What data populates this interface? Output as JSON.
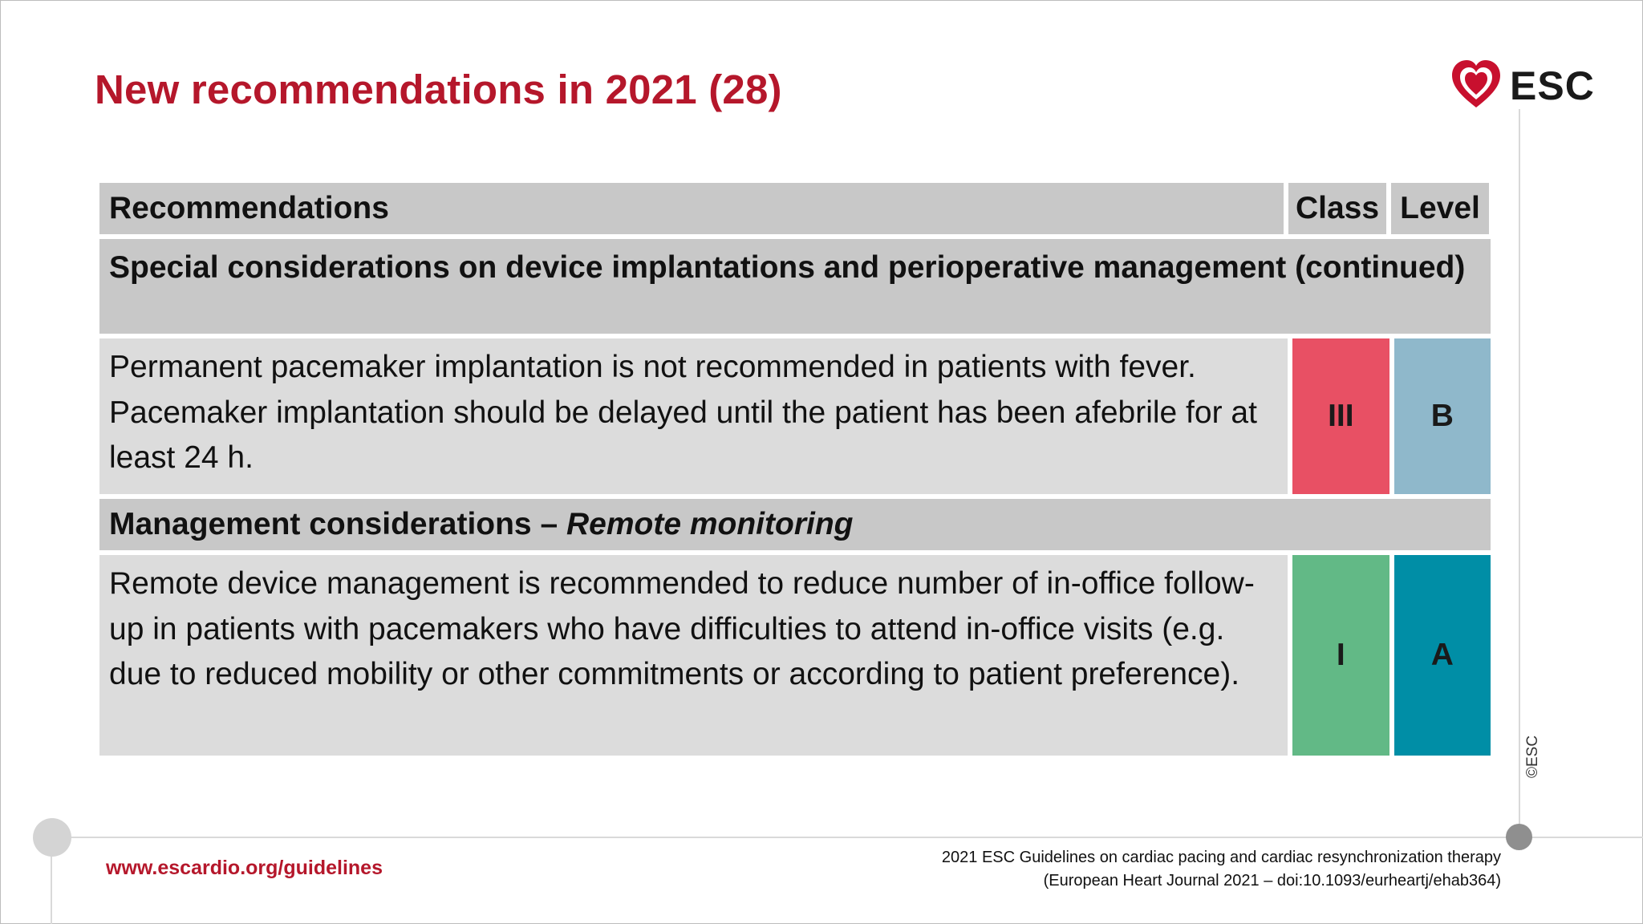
{
  "slide": {
    "title": "New recommendations in 2021 (28)",
    "logo_text": "ESC",
    "copyright": "©ESC",
    "footer_url": "www.escardio.org/guidelines",
    "citation_line1": "2021 ESC Guidelines on cardiac pacing and cardiac resynchronization therapy",
    "citation_line2": "(European Heart Journal 2021 – doi:10.1093/eurheartj/ehab364)"
  },
  "table": {
    "headers": {
      "recommendations": "Recommendations",
      "class": "Class",
      "level": "Level"
    },
    "section1": "Special considerations on device implantations and perioperative management (continued)",
    "row1": {
      "text": "Permanent pacemaker implantation is not recommended in patients with fever. Pacemaker implantation should be delayed until the patient has been afebrile for at least 24 h.",
      "class": "III",
      "level": "B"
    },
    "section2_bold": "Management considerations – ",
    "section2_italic": "Remote monitoring",
    "row2": {
      "text": "Remote device management is recommended to reduce number of in-office follow-up in patients with pacemakers who have difficulties to attend in-office visits (e.g. due to reduced mobility or other commitments or according to patient preference).",
      "class": "I",
      "level": "A"
    }
  },
  "colors": {
    "title_red": "#b5172b",
    "class_III": "#e85064",
    "level_B": "#8fb8cb",
    "class_I": "#62b986",
    "level_A": "#008ea6",
    "header_gray": "#c8c8c8",
    "cell_gray": "#dcdcdc"
  },
  "icons": {
    "logo": "heart-logo-icon"
  }
}
